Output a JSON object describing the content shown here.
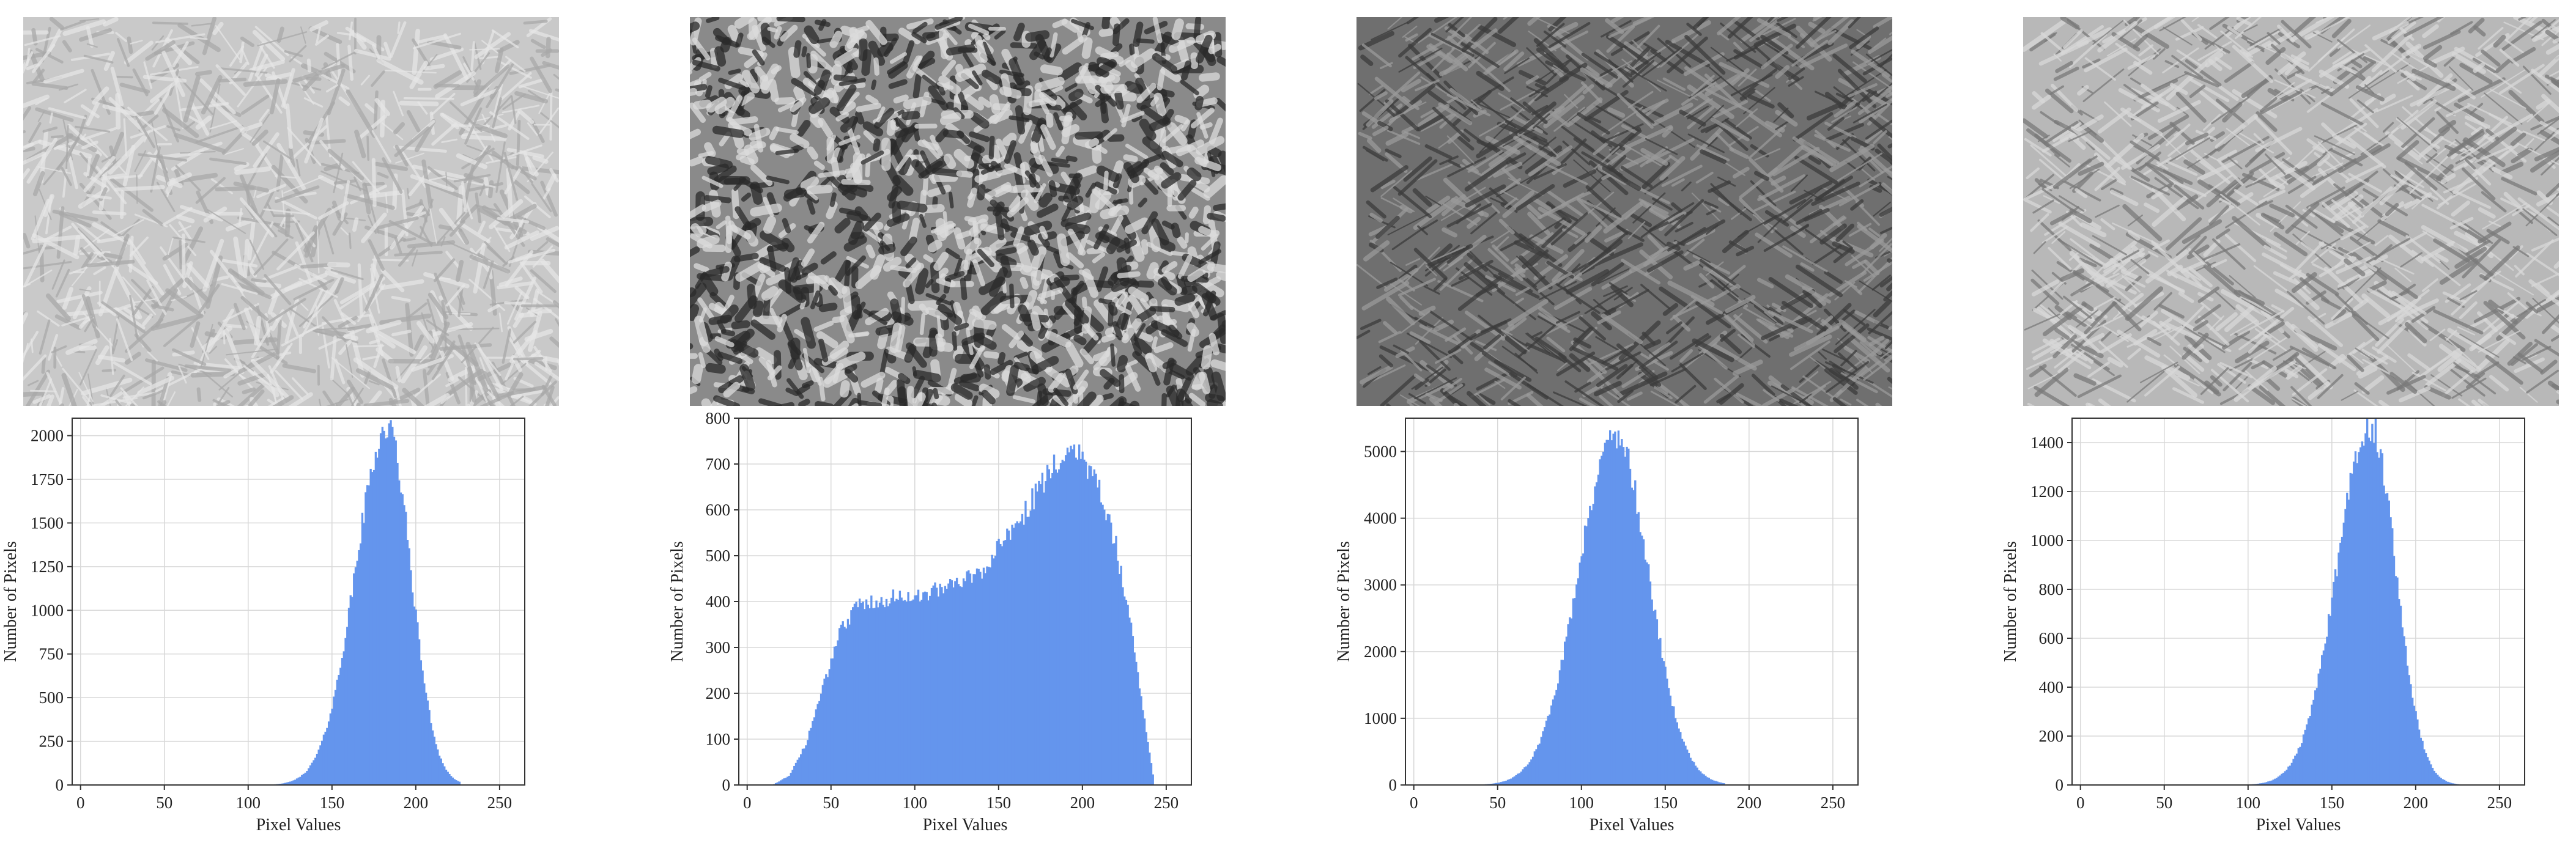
{
  "panels": [
    {
      "image": {
        "description_icon": "microstructure-image",
        "tone": "light",
        "bg": "#c9c9c9"
      },
      "chart": {
        "type": "bar",
        "xlabel": "Pixel Values",
        "ylabel": "Number of Pixels",
        "xlim": [
          -5,
          265
        ],
        "ylim": [
          0,
          2100
        ],
        "xticks": [
          0,
          50,
          100,
          150,
          200,
          250
        ],
        "yticks": [
          0,
          250,
          500,
          750,
          1000,
          1250,
          1500,
          1750,
          2000
        ],
        "grid": true,
        "color": "#6495ED",
        "distribution": {
          "shape": "bell",
          "peak_x": 183,
          "peak_y": 2040,
          "left_sd": 19,
          "right_sd": 14,
          "min_x": 105,
          "max_x": 226
        }
      }
    },
    {
      "image": {
        "description_icon": "microstructure-image",
        "tone": "contrast",
        "bg": "#8a8a8a"
      },
      "chart": {
        "type": "bar",
        "xlabel": "Pixel Values",
        "ylabel": "Number of Pixels",
        "xlim": [
          -5,
          265
        ],
        "ylim": [
          0,
          800
        ],
        "xticks": [
          0,
          50,
          100,
          150,
          200,
          250
        ],
        "yticks": [
          0,
          100,
          200,
          300,
          400,
          500,
          600,
          700,
          800
        ],
        "grid": true,
        "color": "#6495ED",
        "distribution": {
          "shape": "plateau",
          "points": [
            [
              15,
              0
            ],
            [
              25,
              20
            ],
            [
              35,
              90
            ],
            [
              45,
              210
            ],
            [
              55,
              330
            ],
            [
              65,
              390
            ],
            [
              80,
              405
            ],
            [
              100,
              415
            ],
            [
              120,
              430
            ],
            [
              140,
              470
            ],
            [
              160,
              560
            ],
            [
              175,
              650
            ],
            [
              185,
              710
            ],
            [
              193,
              740
            ],
            [
              200,
              720
            ],
            [
              210,
              640
            ],
            [
              220,
              520
            ],
            [
              230,
              320
            ],
            [
              238,
              120
            ],
            [
              243,
              0
            ]
          ]
        }
      }
    },
    {
      "image": {
        "description_icon": "microstructure-image",
        "tone": "dark",
        "bg": "#6f6f6f"
      },
      "chart": {
        "type": "bar",
        "xlabel": "Pixel Values",
        "ylabel": "Number of Pixels",
        "xlim": [
          -5,
          265
        ],
        "ylim": [
          0,
          5500
        ],
        "xticks": [
          0,
          50,
          100,
          150,
          200,
          250
        ],
        "yticks": [
          0,
          1000,
          2000,
          3000,
          4000,
          5000
        ],
        "grid": true,
        "color": "#6495ED",
        "distribution": {
          "shape": "bell",
          "peak_x": 120,
          "peak_y": 5250,
          "left_sd": 22,
          "right_sd": 20,
          "min_x": 32,
          "max_x": 185
        }
      }
    },
    {
      "image": {
        "description_icon": "microstructure-image",
        "tone": "medium",
        "bg": "#b8b8b8"
      },
      "chart": {
        "type": "bar",
        "xlabel": "Pixel Values",
        "ylabel": "Number of Pixels",
        "xlim": [
          -5,
          265
        ],
        "ylim": [
          0,
          1500
        ],
        "xticks": [
          0,
          50,
          100,
          150,
          200,
          250
        ],
        "yticks": [
          0,
          200,
          400,
          600,
          800,
          1000,
          1200,
          1400
        ],
        "grid": true,
        "color": "#6495ED",
        "distribution": {
          "shape": "bell",
          "peak_x": 173,
          "peak_y": 1470,
          "left_sd": 20,
          "right_sd": 15,
          "min_x": 90,
          "max_x": 228
        }
      }
    }
  ]
}
